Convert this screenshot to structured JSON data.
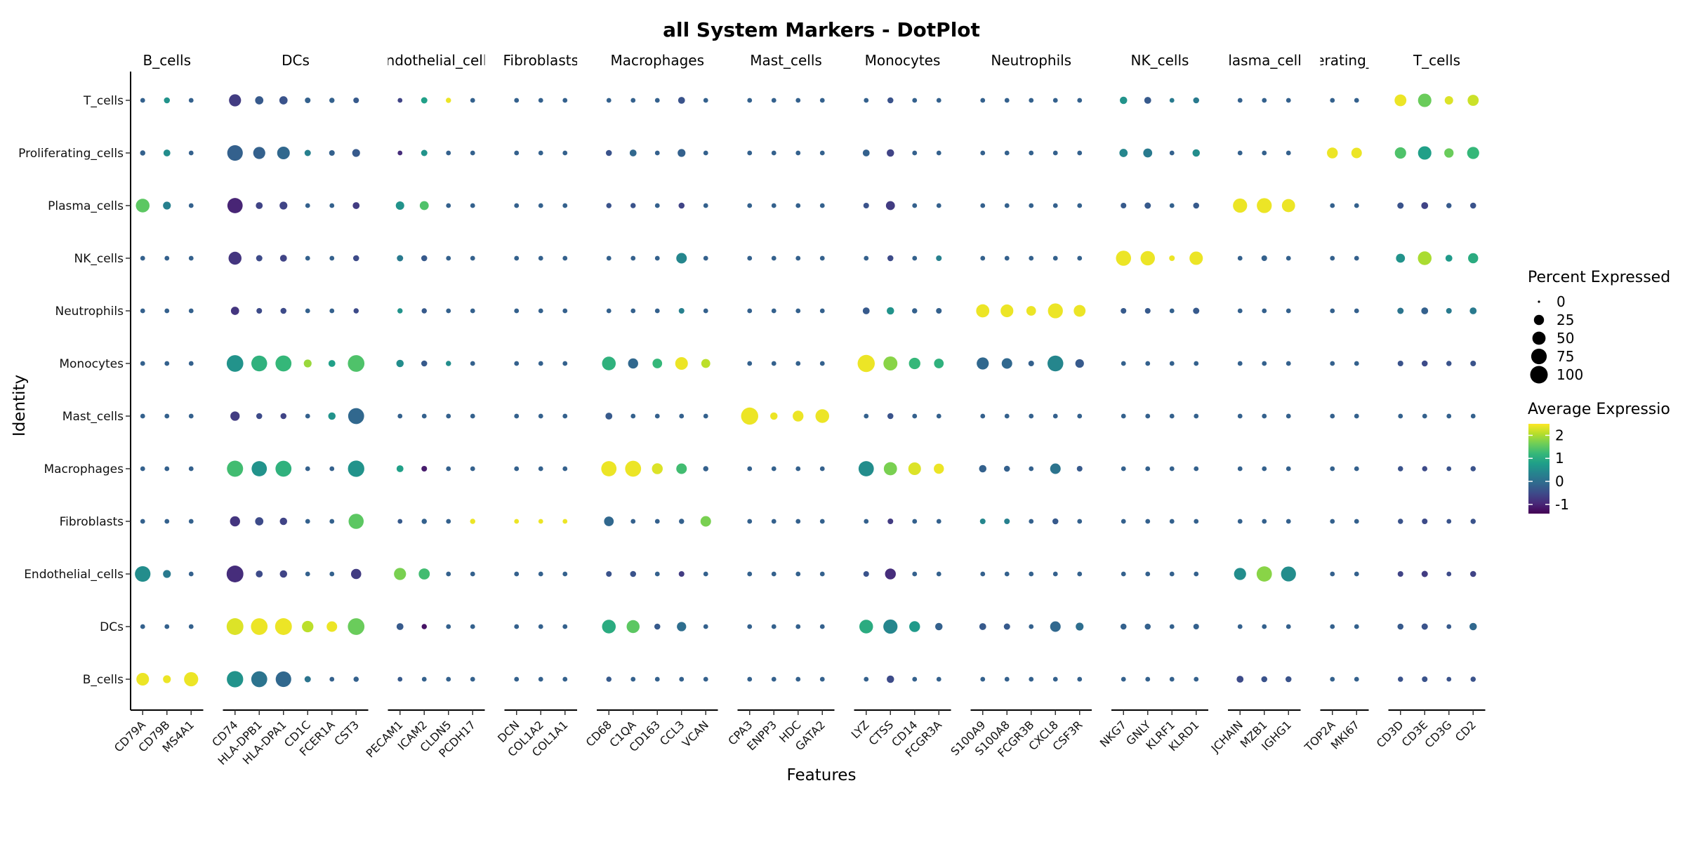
{
  "chart_data": {
    "type": "dotplot",
    "title": "all System Markers - DotPlot",
    "xlabel": "Features",
    "ylabel": "Identity",
    "identities": [
      "B_cells",
      "DCs",
      "Endothelial_cells",
      "Fibroblasts",
      "Macrophages",
      "Mast_cells",
      "Monocytes",
      "Neutrophils",
      "NK_cells",
      "Plasma_cells",
      "Proliferating_cells",
      "T_cells"
    ],
    "groups": [
      {
        "name": "B_cells",
        "label": "B_cells",
        "genes": [
          "CD79A",
          "CD79B",
          "MS4A1"
        ]
      },
      {
        "name": "DCs",
        "label": "DCs",
        "genes": [
          "CD74",
          "HLA-DPB1",
          "HLA-DPA1",
          "CD1C",
          "FCER1A",
          "CST3"
        ]
      },
      {
        "name": "Endothelial_cells",
        "label": "ndothelial_cell",
        "genes": [
          "PECAM1",
          "ICAM2",
          "CLDN5",
          "PCDH17"
        ]
      },
      {
        "name": "Fibroblasts",
        "label": "Fibroblasts",
        "genes": [
          "DCN",
          "COL1A2",
          "COL1A1"
        ]
      },
      {
        "name": "Macrophages",
        "label": "Macrophages",
        "genes": [
          "CD68",
          "C1QA",
          "CD163",
          "CCL3",
          "VCAN"
        ]
      },
      {
        "name": "Mast_cells",
        "label": "Mast_cells",
        "genes": [
          "CPA3",
          "ENPP3",
          "HDC",
          "GATA2"
        ]
      },
      {
        "name": "Monocytes",
        "label": "Monocytes",
        "genes": [
          "LYZ",
          "CTSS",
          "CD14",
          "FCGR3A"
        ]
      },
      {
        "name": "Neutrophils",
        "label": "Neutrophils",
        "genes": [
          "S100A9",
          "S100A8",
          "FCGR3B",
          "CXCL8",
          "CSF3R"
        ]
      },
      {
        "name": "NK_cells",
        "label": "NK_cells",
        "genes": [
          "NKG7",
          "GNLY",
          "KLRF1",
          "KLRD1"
        ]
      },
      {
        "name": "Plasma_cells",
        "label": "Plasma_cells",
        "genes": [
          "JCHAIN",
          "MZB1",
          "IGHG1"
        ]
      },
      {
        "name": "Proliferating_cells",
        "label": "erating_",
        "genes": [
          "TOP2A",
          "MKI67"
        ]
      },
      {
        "name": "T_cells",
        "label": "T_cells",
        "genes": [
          "CD3D",
          "CD3E",
          "CD3G",
          "CD2"
        ]
      }
    ],
    "genes": [
      "CD79A",
      "CD79B",
      "MS4A1",
      "CD74",
      "HLA-DPB1",
      "HLA-DPA1",
      "CD1C",
      "FCER1A",
      "CST3",
      "PECAM1",
      "ICAM2",
      "CLDN5",
      "PCDH17",
      "DCN",
      "COL1A2",
      "COL1A1",
      "CD68",
      "C1QA",
      "CD163",
      "CCL3",
      "VCAN",
      "CPA3",
      "ENPP3",
      "HDC",
      "GATA2",
      "LYZ",
      "CTSS",
      "CD14",
      "FCGR3A",
      "S100A9",
      "S100A8",
      "FCGR3B",
      "CXCL8",
      "CSF3R",
      "NKG7",
      "GNLY",
      "KLRF1",
      "KLRD1",
      "JCHAIN",
      "MZB1",
      "IGHG1",
      "TOP2A",
      "MKI67",
      "CD3D",
      "CD3E",
      "CD3G",
      "CD2"
    ],
    "percent_expressed": {
      "T_cells": [
        2,
        5,
        2,
        40,
        14,
        14,
        4,
        3,
        4,
        2,
        6,
        3,
        2,
        2,
        2,
        2,
        2,
        2,
        2,
        8,
        2,
        2,
        2,
        2,
        2,
        2,
        5,
        2,
        2,
        2,
        2,
        2,
        2,
        2,
        10,
        8,
        2,
        5,
        2,
        2,
        2,
        2,
        2,
        38,
        52,
        15,
        32
      ],
      "Proliferating_cells": [
        3,
        8,
        2,
        75,
        40,
        45,
        6,
        4,
        12,
        2,
        6,
        2,
        2,
        2,
        2,
        2,
        5,
        8,
        2,
        12,
        2,
        2,
        2,
        2,
        2,
        8,
        10,
        2,
        2,
        2,
        2,
        2,
        2,
        2,
        14,
        18,
        2,
        10,
        2,
        2,
        2,
        30,
        28,
        34,
        52,
        20,
        40
      ],
      "Plasma_cells": [
        55,
        12,
        2,
        72,
        8,
        12,
        2,
        2,
        8,
        15,
        18,
        2,
        2,
        2,
        2,
        2,
        3,
        3,
        2,
        5,
        2,
        2,
        2,
        2,
        2,
        4,
        18,
        2,
        2,
        2,
        2,
        2,
        2,
        2,
        4,
        6,
        2,
        5,
        60,
        68,
        50,
        2,
        2,
        6,
        8,
        3,
        5
      ],
      "NK_cells": [
        2,
        2,
        2,
        48,
        6,
        8,
        2,
        2,
        5,
        6,
        5,
        2,
        2,
        2,
        2,
        2,
        2,
        2,
        2,
        28,
        2,
        2,
        2,
        2,
        2,
        2,
        5,
        2,
        4,
        2,
        2,
        2,
        2,
        2,
        70,
        62,
        4,
        52,
        2,
        4,
        2,
        2,
        2,
        18,
        55,
        8,
        25
      ],
      "Neutrophils": [
        2,
        2,
        2,
        14,
        4,
        5,
        2,
        2,
        3,
        3,
        3,
        2,
        2,
        2,
        2,
        2,
        2,
        2,
        2,
        4,
        2,
        2,
        2,
        2,
        2,
        8,
        10,
        3,
        4,
        50,
        46,
        22,
        68,
        38,
        4,
        4,
        2,
        6,
        2,
        2,
        2,
        2,
        2,
        6,
        8,
        4,
        8
      ],
      "Monocytes": [
        2,
        2,
        2,
        88,
        78,
        80,
        12,
        8,
        88,
        10,
        5,
        3,
        2,
        2,
        2,
        2,
        55,
        25,
        22,
        45,
        18,
        2,
        2,
        2,
        2,
        95,
        58,
        35,
        22,
        40,
        28,
        4,
        78,
        16,
        2,
        2,
        2,
        2,
        2,
        2,
        2,
        2,
        2,
        4,
        5,
        3,
        4
      ],
      "Mast_cells": [
        2,
        2,
        2,
        20,
        5,
        5,
        2,
        10,
        80,
        2,
        2,
        2,
        2,
        2,
        2,
        2,
        8,
        2,
        2,
        2,
        2,
        95,
        10,
        30,
        55,
        2,
        5,
        2,
        2,
        2,
        2,
        2,
        2,
        2,
        2,
        2,
        2,
        2,
        2,
        2,
        2,
        2,
        2,
        2,
        2,
        2,
        2
      ],
      "Macrophages": [
        2,
        2,
        2,
        82,
        72,
        80,
        2,
        2,
        85,
        8,
        4,
        2,
        2,
        2,
        2,
        2,
        72,
        80,
        30,
        28,
        3,
        2,
        2,
        2,
        2,
        72,
        50,
        45,
        25,
        10,
        5,
        2,
        28,
        4,
        2,
        2,
        2,
        2,
        2,
        2,
        2,
        2,
        2,
        3,
        3,
        2,
        3
      ],
      "Fibroblasts": [
        2,
        2,
        2,
        25,
        14,
        10,
        2,
        2,
        70,
        2,
        3,
        2,
        3,
        2,
        2,
        2,
        22,
        2,
        2,
        3,
        28,
        2,
        2,
        2,
        2,
        2,
        4,
        2,
        2,
        4,
        4,
        2,
        5,
        2,
        2,
        2,
        2,
        2,
        2,
        2,
        2,
        2,
        2,
        3,
        4,
        2,
        3
      ],
      "Endothelial_cells": [
        75,
        12,
        2,
        90,
        8,
        10,
        2,
        2,
        26,
        40,
        32,
        2,
        2,
        2,
        2,
        2,
        4,
        5,
        2,
        4,
        2,
        2,
        2,
        2,
        2,
        4,
        30,
        2,
        2,
        2,
        2,
        2,
        2,
        2,
        2,
        2,
        2,
        2,
        40,
        72,
        68,
        2,
        2,
        4,
        6,
        2,
        5
      ],
      "DCs": [
        2,
        2,
        2,
        90,
        88,
        90,
        35,
        28,
        88,
        8,
        3,
        2,
        2,
        2,
        2,
        2,
        55,
        48,
        5,
        20,
        2,
        2,
        2,
        2,
        2,
        55,
        60,
        30,
        10,
        8,
        6,
        2,
        28,
        12,
        5,
        5,
        2,
        4,
        2,
        2,
        2,
        2,
        2,
        5,
        6,
        2,
        10
      ],
      "B_cells": [
        45,
        12,
        60,
        85,
        80,
        75,
        6,
        2,
        3,
        2,
        2,
        2,
        2,
        2,
        2,
        2,
        3,
        2,
        2,
        2,
        2,
        2,
        2,
        2,
        2,
        2,
        10,
        2,
        2,
        2,
        2,
        2,
        2,
        2,
        2,
        2,
        2,
        2,
        8,
        5,
        5,
        2,
        2,
        3,
        4,
        2,
        3
      ]
    },
    "average_expression": {
      "T_cells": [
        -0.2,
        0.6,
        -0.2,
        -0.7,
        -0.3,
        -0.4,
        -0.2,
        -0.2,
        -0.3,
        -0.6,
        0.8,
        2.4,
        -0.2,
        -0.2,
        -0.2,
        -0.2,
        -0.2,
        -0.2,
        -0.2,
        -0.4,
        -0.2,
        -0.2,
        -0.2,
        -0.2,
        -0.2,
        -0.2,
        -0.4,
        -0.2,
        -0.2,
        -0.2,
        -0.2,
        -0.2,
        -0.2,
        -0.2,
        0.6,
        -0.3,
        0.2,
        0.2,
        -0.2,
        -0.2,
        -0.2,
        -0.2,
        -0.2,
        2.4,
        1.6,
        2.3,
        2.2
      ],
      "Proliferating_cells": [
        -0.2,
        0.5,
        -0.2,
        -0.2,
        -0.2,
        -0.1,
        0.3,
        -0.2,
        -0.3,
        -0.9,
        0.6,
        -0.2,
        -0.2,
        -0.2,
        -0.2,
        -0.2,
        -0.4,
        -0.1,
        -0.2,
        -0.2,
        -0.2,
        -0.2,
        -0.2,
        -0.2,
        -0.2,
        -0.2,
        -0.6,
        -0.2,
        -0.2,
        -0.2,
        -0.2,
        -0.2,
        -0.2,
        -0.2,
        0.4,
        0.2,
        -0.2,
        0.5,
        -0.2,
        -0.2,
        -0.2,
        2.4,
        2.4,
        1.4,
        0.8,
        1.6,
        1.2
      ],
      "Plasma_cells": [
        1.5,
        0.3,
        -0.2,
        -1.0,
        -0.6,
        -0.6,
        -0.2,
        -0.2,
        -0.7,
        0.6,
        1.4,
        -0.2,
        -0.2,
        -0.2,
        -0.2,
        -0.2,
        -0.4,
        -0.4,
        -0.2,
        -0.6,
        -0.2,
        -0.2,
        -0.2,
        -0.2,
        -0.2,
        -0.4,
        -0.7,
        -0.2,
        -0.2,
        -0.2,
        -0.2,
        -0.2,
        -0.2,
        -0.2,
        -0.3,
        -0.3,
        -0.2,
        -0.3,
        2.4,
        2.4,
        2.4,
        -0.2,
        -0.2,
        -0.4,
        -0.6,
        -0.3,
        -0.4
      ],
      "NK_cells": [
        -0.2,
        -0.2,
        -0.2,
        -0.8,
        -0.5,
        -0.6,
        -0.2,
        -0.2,
        -0.5,
        0.2,
        -0.3,
        -0.2,
        -0.2,
        -0.2,
        -0.2,
        -0.2,
        -0.2,
        -0.2,
        -0.2,
        0.4,
        -0.2,
        -0.2,
        -0.2,
        -0.2,
        -0.2,
        -0.2,
        -0.5,
        -0.2,
        0.3,
        -0.2,
        -0.2,
        -0.2,
        -0.2,
        -0.2,
        2.4,
        2.4,
        2.4,
        2.4,
        -0.2,
        -0.2,
        -0.2,
        -0.2,
        -0.2,
        0.6,
        2.0,
        0.7,
        1.0
      ],
      "Neutrophils": [
        -0.2,
        -0.2,
        -0.2,
        -0.8,
        -0.5,
        -0.5,
        -0.2,
        -0.2,
        -0.5,
        0.6,
        -0.3,
        -0.2,
        -0.2,
        -0.2,
        -0.2,
        -0.2,
        -0.2,
        -0.2,
        -0.2,
        0.3,
        -0.2,
        -0.2,
        -0.2,
        -0.2,
        -0.2,
        -0.3,
        0.6,
        -0.2,
        -0.2,
        2.4,
        2.4,
        2.4,
        2.4,
        2.4,
        -0.3,
        -0.3,
        -0.2,
        -0.3,
        -0.2,
        -0.2,
        -0.2,
        -0.2,
        -0.2,
        0.1,
        -0.2,
        0.2,
        0.2
      ],
      "Monocytes": [
        -0.2,
        -0.2,
        -0.2,
        0.6,
        1.1,
        1.2,
        1.9,
        0.8,
        1.4,
        0.5,
        -0.3,
        0.5,
        -0.2,
        -0.2,
        -0.2,
        -0.2,
        1.1,
        -0.1,
        1.2,
        2.4,
        2.1,
        -0.2,
        -0.2,
        -0.2,
        -0.2,
        2.4,
        1.8,
        1.2,
        1.1,
        -0.1,
        -0.1,
        -0.2,
        0.4,
        -0.3,
        -0.2,
        -0.2,
        -0.2,
        -0.2,
        -0.2,
        -0.2,
        -0.2,
        -0.2,
        -0.2,
        -0.4,
        -0.5,
        -0.4,
        -0.4
      ],
      "Mast_cells": [
        -0.2,
        -0.2,
        -0.2,
        -0.7,
        -0.5,
        -0.6,
        -0.2,
        0.6,
        -0.1,
        -0.2,
        -0.2,
        -0.2,
        -0.2,
        -0.2,
        -0.2,
        -0.2,
        -0.3,
        -0.2,
        -0.2,
        -0.2,
        -0.2,
        2.4,
        2.4,
        2.4,
        2.4,
        -0.2,
        -0.4,
        -0.2,
        -0.2,
        -0.2,
        -0.2,
        -0.2,
        -0.2,
        -0.2,
        -0.2,
        -0.2,
        -0.2,
        -0.2,
        -0.2,
        -0.2,
        -0.2,
        -0.2,
        -0.2,
        -0.2,
        -0.2,
        -0.2,
        -0.2
      ],
      "Macrophages": [
        -0.2,
        -0.2,
        -0.2,
        1.3,
        0.6,
        1.1,
        -0.2,
        -0.2,
        0.6,
        0.8,
        -1.1,
        -0.2,
        -0.2,
        -0.2,
        -0.2,
        -0.2,
        2.4,
        2.4,
        2.3,
        1.3,
        -0.2,
        -0.2,
        -0.2,
        -0.2,
        -0.2,
        0.5,
        1.7,
        2.3,
        2.4,
        -0.2,
        -0.2,
        -0.2,
        0.1,
        -0.3,
        -0.2,
        -0.2,
        -0.2,
        -0.2,
        -0.2,
        -0.2,
        -0.2,
        -0.2,
        -0.2,
        -0.4,
        -0.5,
        -0.4,
        -0.4
      ],
      "Fibroblasts": [
        -0.2,
        -0.2,
        -0.2,
        -0.8,
        -0.5,
        -0.6,
        -0.2,
        -0.2,
        1.5,
        -0.3,
        -0.2,
        -0.2,
        2.4,
        2.4,
        2.4,
        2.4,
        -0.1,
        -0.2,
        -0.2,
        -0.2,
        1.7,
        -0.2,
        -0.2,
        -0.2,
        -0.2,
        -0.2,
        -0.7,
        -0.2,
        -0.2,
        0.4,
        0.3,
        -0.2,
        -0.3,
        -0.2,
        -0.2,
        -0.2,
        -0.2,
        -0.2,
        -0.2,
        -0.2,
        -0.2,
        -0.2,
        -0.2,
        -0.4,
        -0.5,
        -0.4,
        -0.4
      ],
      "Endothelial_cells": [
        0.5,
        0.2,
        -0.2,
        -0.9,
        -0.5,
        -0.6,
        -0.2,
        -0.2,
        -0.7,
        1.7,
        1.3,
        -0.2,
        -0.2,
        -0.2,
        -0.2,
        -0.2,
        -0.4,
        -0.4,
        -0.2,
        -0.7,
        -0.2,
        -0.2,
        -0.2,
        -0.2,
        -0.2,
        -0.4,
        -0.9,
        -0.2,
        -0.2,
        -0.2,
        -0.2,
        -0.2,
        -0.2,
        -0.2,
        -0.2,
        -0.2,
        -0.2,
        -0.2,
        0.5,
        1.8,
        0.5,
        -0.2,
        -0.2,
        -0.6,
        -0.7,
        -0.5,
        -0.6
      ],
      "DCs": [
        -0.2,
        -0.2,
        -0.2,
        2.3,
        2.4,
        2.4,
        2.1,
        2.4,
        1.6,
        -0.3,
        -1.2,
        -0.2,
        -0.2,
        -0.2,
        -0.2,
        -0.2,
        1.0,
        1.5,
        -0.3,
        0.0,
        -0.2,
        -0.2,
        -0.2,
        -0.2,
        -0.2,
        1.0,
        0.4,
        0.7,
        -0.2,
        -0.3,
        -0.3,
        -0.2,
        -0.1,
        0.0,
        -0.2,
        -0.2,
        -0.2,
        -0.2,
        -0.2,
        -0.2,
        -0.2,
        -0.2,
        -0.2,
        -0.3,
        -0.4,
        -0.3,
        -0.1
      ],
      "B_cells": [
        2.4,
        2.4,
        2.4,
        0.6,
        0.1,
        -0.1,
        0.1,
        -0.2,
        -0.2,
        -0.3,
        -0.2,
        -0.2,
        -0.2,
        -0.2,
        -0.2,
        -0.2,
        -0.3,
        -0.2,
        -0.2,
        -0.2,
        -0.2,
        -0.2,
        -0.2,
        -0.2,
        -0.2,
        -0.2,
        -0.5,
        -0.2,
        -0.2,
        -0.2,
        -0.2,
        -0.2,
        -0.2,
        -0.2,
        -0.2,
        -0.2,
        -0.2,
        -0.2,
        -0.5,
        -0.4,
        -0.4,
        -0.2,
        -0.2,
        -0.4,
        -0.4,
        -0.4,
        -0.4
      ]
    },
    "size_legend": {
      "title": "Percent Expressed",
      "breaks": [
        0,
        25,
        50,
        75,
        100
      ],
      "labels": [
        "0",
        "25",
        "50",
        "75",
        "100"
      ]
    },
    "color_legend": {
      "title": "Average Expressio",
      "breaks": [
        2,
        1,
        0,
        -1
      ],
      "labels": [
        "2",
        "1",
        "0",
        "-1"
      ],
      "range": [
        -1.4,
        2.5
      ],
      "palette": [
        "#440154",
        "#482878",
        "#3e4989",
        "#31688e",
        "#26828e",
        "#1f9e89",
        "#35b779",
        "#6ece58",
        "#b5de2b",
        "#fde725"
      ]
    }
  }
}
